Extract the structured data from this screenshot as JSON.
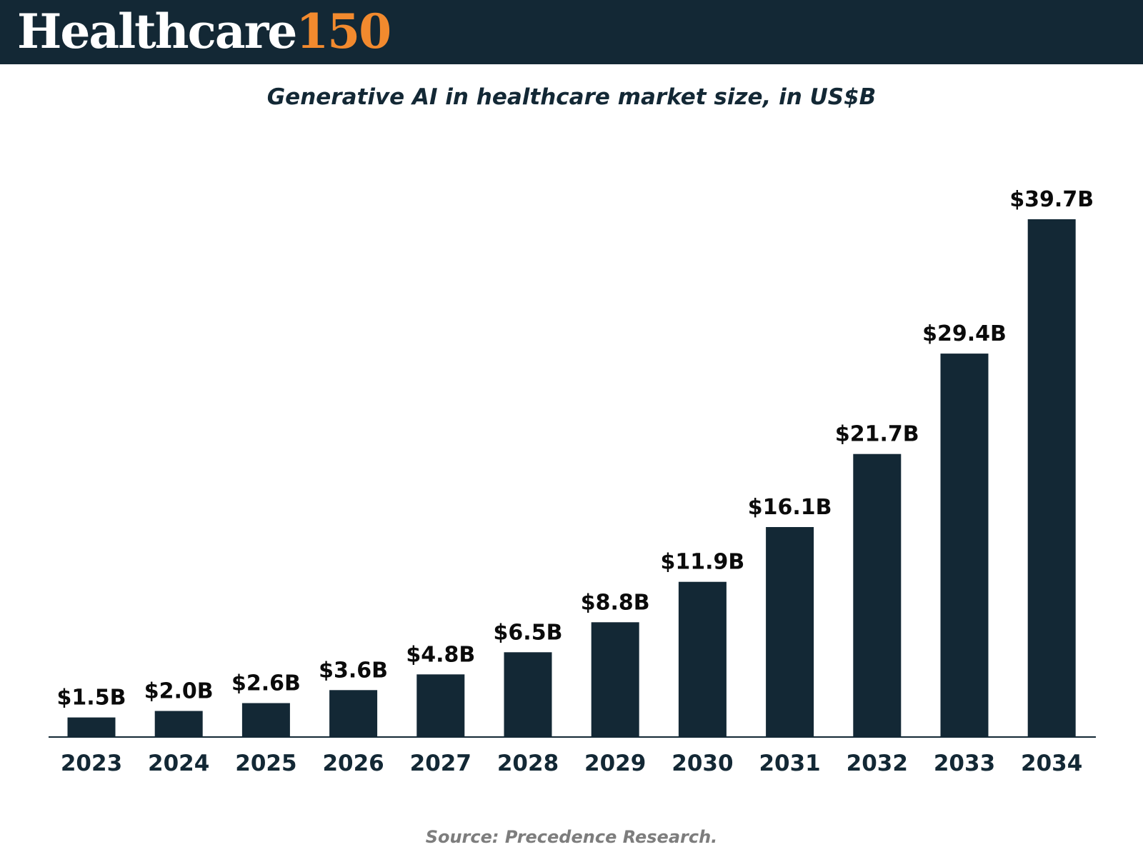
{
  "header": {
    "logo_word": "Healthcare",
    "logo_number": "150",
    "background_color": "#132835",
    "accent_color": "#f28a2e"
  },
  "chart_data": {
    "type": "bar",
    "title": "Generative AI in healthcare market size, in US$B",
    "categories": [
      "2023",
      "2024",
      "2025",
      "2026",
      "2027",
      "2028",
      "2029",
      "2030",
      "2031",
      "2032",
      "2033",
      "2034"
    ],
    "values": [
      1.5,
      2.0,
      2.6,
      3.6,
      4.8,
      6.5,
      8.8,
      11.9,
      16.1,
      21.7,
      29.4,
      39.7
    ],
    "value_labels": [
      "$1.5B",
      "$2.0B",
      "$2.6B",
      "$3.6B",
      "$4.8B",
      "$6.5B",
      "$8.8B",
      "$11.9B",
      "$16.1B",
      "$21.7B",
      "$29.4B",
      "$39.7B"
    ],
    "xlabel": "",
    "ylabel": "",
    "grid": false,
    "bar_color": "#132835"
  },
  "source": "Source: Precedence Research."
}
